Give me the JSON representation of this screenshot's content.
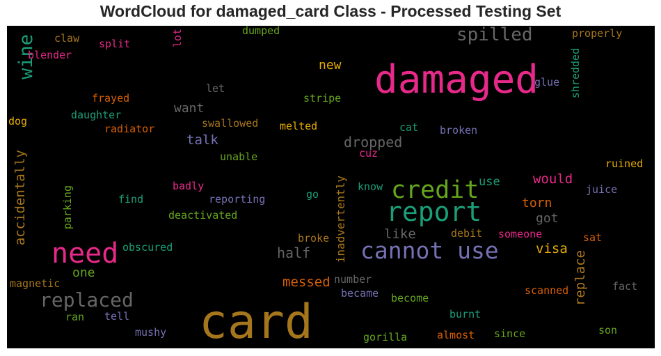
{
  "chart_data": {
    "type": "wordcloud",
    "title": "WordCloud for damaged_card Class - Processed Testing Set",
    "background": "#000000",
    "colormap": "Dark2",
    "words": [
      {
        "text": "card",
        "color": "#a6761d"
      },
      {
        "text": "damaged",
        "color": "#e7298a"
      },
      {
        "text": "report",
        "color": "#1b9e77"
      },
      {
        "text": "need",
        "color": "#e7298a"
      },
      {
        "text": "credit",
        "color": "#66a61e"
      },
      {
        "text": "cannot use",
        "color": "#7570b3"
      },
      {
        "text": "replaced",
        "color": "#666666"
      },
      {
        "text": "spilled",
        "color": "#666666"
      },
      {
        "text": "wine",
        "color": "#1b9e77"
      },
      {
        "text": "dropped",
        "color": "#666666"
      },
      {
        "text": "half",
        "color": "#666666"
      },
      {
        "text": "messed",
        "color": "#d95f02"
      },
      {
        "text": "replace",
        "color": "#a6761d"
      },
      {
        "text": "accidentally",
        "color": "#a6761d"
      },
      {
        "text": "would",
        "color": "#e7298a"
      },
      {
        "text": "visa",
        "color": "#e6ab02"
      },
      {
        "text": "like",
        "color": "#666666"
      },
      {
        "text": "new",
        "color": "#e6ab02"
      },
      {
        "text": "want",
        "color": "#666666"
      },
      {
        "text": "talk",
        "color": "#7570b3"
      },
      {
        "text": "use",
        "color": "#1b9e77"
      },
      {
        "text": "torn",
        "color": "#d95f02"
      },
      {
        "text": "got",
        "color": "#666666"
      },
      {
        "text": "one",
        "color": "#66a61e"
      },
      {
        "text": "inadvertently",
        "color": "#a6761d"
      },
      {
        "text": "shredded",
        "color": "#1b9e77"
      },
      {
        "text": "parking",
        "color": "#66a61e"
      },
      {
        "text": "lot",
        "color": "#e7298a"
      },
      {
        "text": "claw",
        "color": "#a6761d"
      },
      {
        "text": "split",
        "color": "#e7298a"
      },
      {
        "text": "blender",
        "color": "#e7298a"
      },
      {
        "text": "dumped",
        "color": "#66a61e"
      },
      {
        "text": "properly",
        "color": "#a6761d"
      },
      {
        "text": "glue",
        "color": "#7570b3"
      },
      {
        "text": "frayed",
        "color": "#d95f02"
      },
      {
        "text": "let",
        "color": "#666666"
      },
      {
        "text": "stripe",
        "color": "#66a61e"
      },
      {
        "text": "daughter",
        "color": "#1b9e77"
      },
      {
        "text": "dog",
        "color": "#e6ab02"
      },
      {
        "text": "radiator",
        "color": "#d95f02"
      },
      {
        "text": "swallowed",
        "color": "#a6761d"
      },
      {
        "text": "melted",
        "color": "#e6ab02"
      },
      {
        "text": "cat",
        "color": "#1b9e77"
      },
      {
        "text": "broken",
        "color": "#7570b3"
      },
      {
        "text": "unable",
        "color": "#66a61e"
      },
      {
        "text": "cuz",
        "color": "#e7298a"
      },
      {
        "text": "ruined",
        "color": "#e6ab02"
      },
      {
        "text": "badly",
        "color": "#e7298a"
      },
      {
        "text": "know",
        "color": "#1b9e77"
      },
      {
        "text": "juice",
        "color": "#7570b3"
      },
      {
        "text": "find",
        "color": "#1b9e77"
      },
      {
        "text": "reporting",
        "color": "#7570b3"
      },
      {
        "text": "go",
        "color": "#1b9e77"
      },
      {
        "text": "deactivated",
        "color": "#66a61e"
      },
      {
        "text": "broke",
        "color": "#a6761d"
      },
      {
        "text": "debit",
        "color": "#a6761d"
      },
      {
        "text": "someone",
        "color": "#e7298a"
      },
      {
        "text": "sat",
        "color": "#d95f02"
      },
      {
        "text": "obscured",
        "color": "#1b9e77"
      },
      {
        "text": "magnetic",
        "color": "#a6761d"
      },
      {
        "text": "number",
        "color": "#666666"
      },
      {
        "text": "became",
        "color": "#7570b3"
      },
      {
        "text": "scanned",
        "color": "#d95f02"
      },
      {
        "text": "fact",
        "color": "#666666"
      },
      {
        "text": "become",
        "color": "#66a61e"
      },
      {
        "text": "burnt",
        "color": "#1b9e77"
      },
      {
        "text": "ran",
        "color": "#66a61e"
      },
      {
        "text": "tell",
        "color": "#7570b3"
      },
      {
        "text": "son",
        "color": "#66a61e"
      },
      {
        "text": "mushy",
        "color": "#7570b3"
      },
      {
        "text": "almost",
        "color": "#d95f02"
      },
      {
        "text": "since",
        "color": "#66a61e"
      },
      {
        "text": "gorilla",
        "color": "#66a61e"
      }
    ]
  }
}
